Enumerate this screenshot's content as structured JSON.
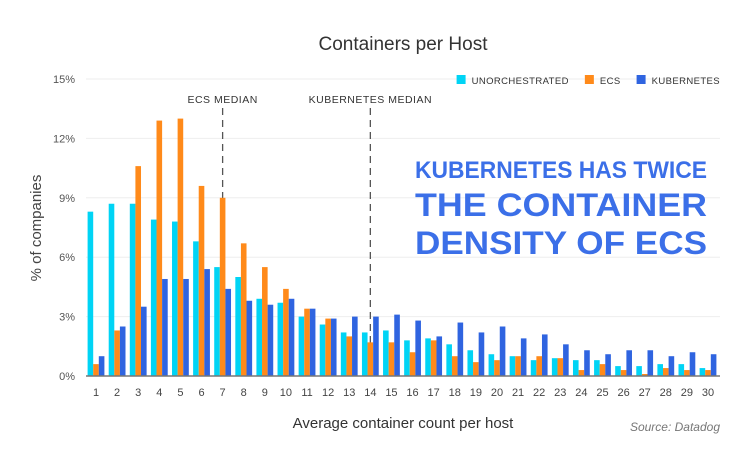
{
  "chart_data": {
    "type": "bar",
    "title": "Containers per Host",
    "xlabel": "Average container count per host",
    "ylabel": "% of companies",
    "ylim": [
      0,
      15
    ],
    "yticks": [
      "0%",
      "3%",
      "6%",
      "9%",
      "12%",
      "15%"
    ],
    "ytick_values": [
      0,
      3,
      6,
      9,
      12,
      15
    ],
    "grid": true,
    "legend_position": "top-right",
    "categories": [
      "1",
      "2",
      "3",
      "4",
      "5",
      "6",
      "7",
      "8",
      "9",
      "10",
      "11",
      "12",
      "13",
      "14",
      "15",
      "16",
      "17",
      "18",
      "19",
      "20",
      "21",
      "22",
      "23",
      "24",
      "25",
      "26",
      "27",
      "28",
      "29",
      "30"
    ],
    "series": [
      {
        "name": "UNORCHESTRATED",
        "color": "#00d4f5",
        "values": [
          8.3,
          8.7,
          8.7,
          7.9,
          7.8,
          6.8,
          5.5,
          5.0,
          3.9,
          3.7,
          3.0,
          2.6,
          2.2,
          2.2,
          2.3,
          1.8,
          1.9,
          1.6,
          1.3,
          1.1,
          1.0,
          0.8,
          0.9,
          0.8,
          0.8,
          0.5,
          0.5,
          0.6,
          0.6,
          0.4
        ]
      },
      {
        "name": "ECS",
        "color": "#ff8a1a",
        "values": [
          0.6,
          2.3,
          10.6,
          12.9,
          13.0,
          9.6,
          9.0,
          6.7,
          5.5,
          4.4,
          3.4,
          2.9,
          2.0,
          1.7,
          1.7,
          1.2,
          1.8,
          1.0,
          0.7,
          0.8,
          1.0,
          1.0,
          0.9,
          0.3,
          0.6,
          0.3,
          0.1,
          0.4,
          0.3,
          0.3
        ]
      },
      {
        "name": "KUBERNETES",
        "color": "#2f64e0",
        "values": [
          1.0,
          2.5,
          3.5,
          4.9,
          4.9,
          5.4,
          4.4,
          3.8,
          3.6,
          3.9,
          3.4,
          2.9,
          3.0,
          3.0,
          3.1,
          2.8,
          2.0,
          2.7,
          2.2,
          2.5,
          1.9,
          2.1,
          1.6,
          1.3,
          1.1,
          1.3,
          1.3,
          1.0,
          1.2,
          1.1
        ]
      }
    ],
    "annotations": [
      {
        "label": "ECS MEDIAN",
        "x": "7"
      },
      {
        "label": "KUBERNETES MEDIAN",
        "x": "14"
      }
    ],
    "headline": [
      "KUBERNETES HAS TWICE",
      "THE CONTAINER",
      "DENSITY OF ECS"
    ],
    "headline_color": "#3b6fe8",
    "source": "Source: Datadog"
  }
}
